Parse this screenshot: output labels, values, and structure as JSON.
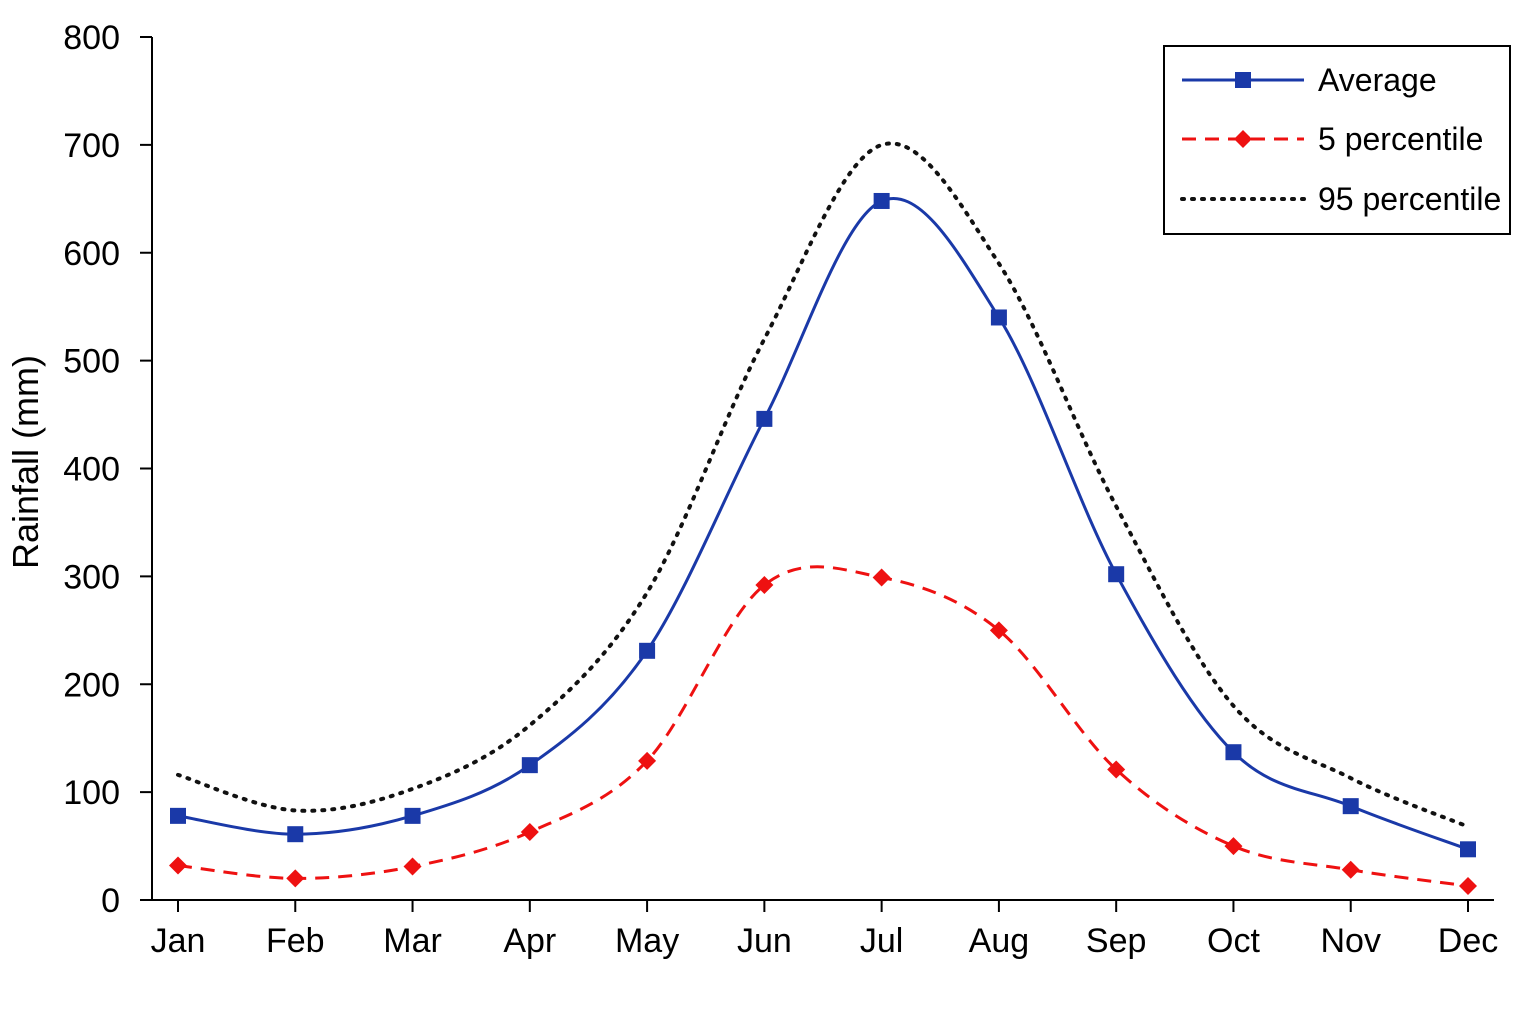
{
  "chart_data": {
    "type": "line",
    "title": "",
    "xlabel": "",
    "ylabel": "Rainfall (mm)",
    "ylim": [
      0,
      800
    ],
    "yticks": [
      "0",
      "100",
      "200",
      "300",
      "400",
      "500",
      "600",
      "700",
      "800"
    ],
    "categories": [
      "Jan",
      "Feb",
      "Mar",
      "Apr",
      "May",
      "Jun",
      "Jul",
      "Aug",
      "Sep",
      "Oct",
      "Nov",
      "Dec"
    ],
    "grid": false,
    "legend_position": "top-right",
    "series": [
      {
        "name": "Average",
        "values": [
          78,
          61,
          78,
          125,
          231,
          446,
          648,
          540,
          302,
          137,
          87,
          47
        ],
        "color": "#1a39a8",
        "line_style": "solid",
        "marker": "square"
      },
      {
        "name": "5 percentile",
        "values": [
          32,
          20,
          31,
          63,
          129,
          292,
          299,
          250,
          121,
          50,
          28,
          13
        ],
        "color": "#ee1111",
        "line_style": "dashed",
        "marker": "diamond"
      },
      {
        "name": "95 percentile",
        "values": [
          116,
          83,
          103,
          162,
          285,
          520,
          700,
          590,
          365,
          180,
          113,
          68
        ],
        "color": "#111111",
        "line_style": "dotted",
        "marker": "none"
      }
    ]
  }
}
